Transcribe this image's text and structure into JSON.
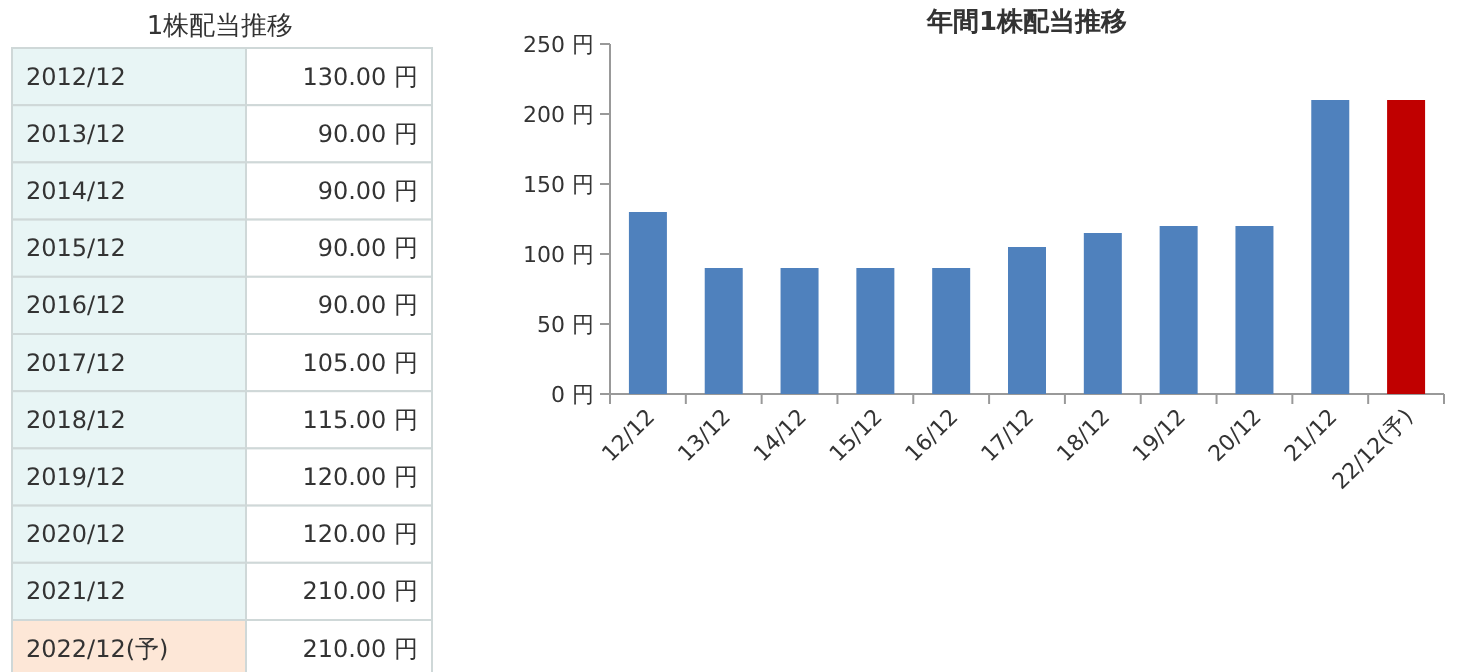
{
  "chart_data": [
    {
      "type": "other",
      "title": "1株配当推移",
      "categories": [
        "2012/12",
        "2013/12",
        "2014/12",
        "2015/12",
        "2016/12",
        "2017/12",
        "2018/12",
        "2019/12",
        "2020/12",
        "2021/12",
        "2022/12(予)"
      ],
      "value_labels": [
        "130.00 円",
        "90.00 円",
        "90.00 円",
        "90.00 円",
        "90.00 円",
        "105.00 円",
        "115.00 円",
        "120.00 円",
        "120.00 円",
        "210.00 円",
        "210.00 円"
      ]
    },
    {
      "type": "bar",
      "title": "年間1株配当推移",
      "categories": [
        "12/12",
        "13/12",
        "14/12",
        "15/12",
        "16/12",
        "17/12",
        "18/12",
        "19/12",
        "20/12",
        "21/12",
        "22/12(予)"
      ],
      "values": [
        130,
        90,
        90,
        90,
        90,
        105,
        115,
        120,
        120,
        210,
        210
      ],
      "colors": [
        "#4f81bd",
        "#4f81bd",
        "#4f81bd",
        "#4f81bd",
        "#4f81bd",
        "#4f81bd",
        "#4f81bd",
        "#4f81bd",
        "#4f81bd",
        "#4f81bd",
        "#c00000"
      ],
      "ylim": [
        0,
        250
      ],
      "yticks": [
        {
          "value": 0,
          "label": "0 円"
        },
        {
          "value": 50,
          "label": "50 円"
        },
        {
          "value": 100,
          "label": "100 円"
        },
        {
          "value": 150,
          "label": "150 円"
        },
        {
          "value": 200,
          "label": "200 円"
        },
        {
          "value": 250,
          "label": "250 円"
        }
      ]
    }
  ]
}
